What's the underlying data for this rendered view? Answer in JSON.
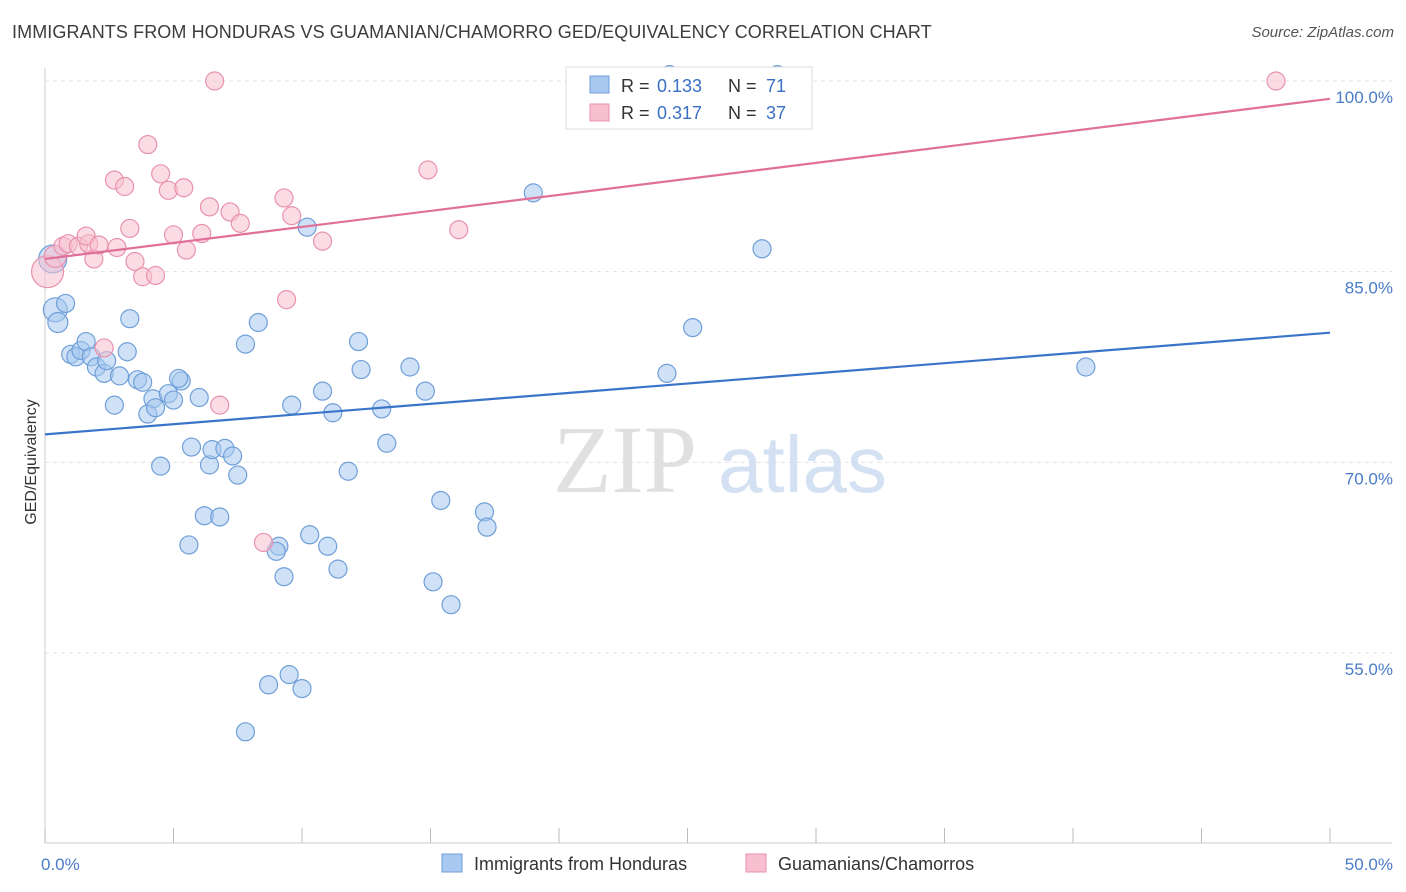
{
  "title": "IMMIGRANTS FROM HONDURAS VS GUAMANIAN/CHAMORRO GED/EQUIVALENCY CORRELATION CHART",
  "source": "Source: ZipAtlas.com",
  "watermark": {
    "zip": "ZIP",
    "atlas": "atlas"
  },
  "colors": {
    "blue_fill": "#a8c8f0",
    "blue_stroke": "#6f9fd8",
    "blue_line": "#3a74c9",
    "pink_fill": "#f7bfd0",
    "pink_stroke": "#e892ad",
    "pink_line": "#e0709a",
    "tick_text": "#4a7cc7",
    "grid": "#e2e2e2"
  },
  "legend": {
    "r_label": "R =",
    "n_label": "N =",
    "items": [
      {
        "r": "0.133",
        "n": "71",
        "color": "blue"
      },
      {
        "r": "0.317",
        "n": "37",
        "color": "pink"
      }
    ]
  },
  "chart_data": {
    "type": "scatter",
    "title": "IMMIGRANTS FROM HONDURAS VS GUAMANIAN/CHAMORRO GED/EQUIVALENCY CORRELATION CHART",
    "xlabel": "",
    "ylabel": "GED/Equivalency",
    "xlim": [
      0,
      50
    ],
    "ylim": [
      42,
      101
    ],
    "x_tick_labels": [
      {
        "value": 0,
        "label": "0.0%"
      },
      {
        "value": 50,
        "label": "50.0%"
      }
    ],
    "y_tick_labels": [
      {
        "value": 55,
        "label": "55.0%"
      },
      {
        "value": 70,
        "label": "70.0%"
      },
      {
        "value": 85,
        "label": "85.0%"
      },
      {
        "value": 100,
        "label": "100.0%"
      }
    ],
    "grid": true,
    "legend_position": "top-center",
    "series": [
      {
        "name": "Immigrants from Honduras",
        "color": "blue",
        "trend": {
          "x": [
            0,
            50
          ],
          "y": [
            72.2,
            80.2
          ]
        },
        "points": [
          [
            0.3,
            86.0,
            14
          ],
          [
            0.4,
            82.0,
            12
          ],
          [
            0.5,
            81.0,
            10
          ],
          [
            0.8,
            82.5,
            9
          ],
          [
            1.0,
            78.5,
            9
          ],
          [
            1.2,
            78.3,
            9
          ],
          [
            1.4,
            78.8,
            9
          ],
          [
            1.6,
            79.5,
            9
          ],
          [
            1.8,
            78.3,
            9
          ],
          [
            2.0,
            77.5,
            9
          ],
          [
            2.3,
            77.0,
            9
          ],
          [
            2.4,
            78.0,
            9
          ],
          [
            3.2,
            78.7,
            9
          ],
          [
            3.3,
            81.3,
            9
          ],
          [
            2.7,
            74.5,
            9
          ],
          [
            2.9,
            76.8,
            9
          ],
          [
            3.6,
            76.5,
            9
          ],
          [
            3.8,
            76.3,
            9
          ],
          [
            4.2,
            75.0,
            9
          ],
          [
            4.0,
            73.8,
            9
          ],
          [
            4.3,
            74.3,
            9
          ],
          [
            4.5,
            69.7,
            9
          ],
          [
            4.8,
            75.4,
            9
          ],
          [
            5.0,
            74.9,
            9
          ],
          [
            5.3,
            76.4,
            9
          ],
          [
            5.2,
            76.6,
            9
          ],
          [
            5.7,
            71.2,
            9
          ],
          [
            6.0,
            75.1,
            9
          ],
          [
            6.4,
            69.8,
            9
          ],
          [
            6.5,
            71.0,
            9
          ],
          [
            7.0,
            71.1,
            9
          ],
          [
            7.3,
            70.5,
            9
          ],
          [
            7.5,
            69.0,
            9
          ],
          [
            7.8,
            79.3,
            9
          ],
          [
            8.3,
            81.0,
            9
          ],
          [
            9.1,
            63.4,
            9
          ],
          [
            9.0,
            63.0,
            9
          ],
          [
            9.3,
            61.0,
            9
          ],
          [
            8.7,
            52.5,
            9
          ],
          [
            9.5,
            53.3,
            9
          ],
          [
            10.0,
            52.2,
            9
          ],
          [
            7.8,
            48.8,
            9
          ],
          [
            6.2,
            65.8,
            9
          ],
          [
            6.8,
            65.7,
            9
          ],
          [
            5.6,
            63.5,
            9
          ],
          [
            9.6,
            74.5,
            9
          ],
          [
            10.3,
            64.3,
            9
          ],
          [
            10.8,
            75.6,
            9
          ],
          [
            11.2,
            73.9,
            9
          ],
          [
            11.0,
            63.4,
            9
          ],
          [
            11.4,
            61.6,
            9
          ],
          [
            11.8,
            69.3,
            9
          ],
          [
            12.2,
            79.5,
            9
          ],
          [
            12.3,
            77.3,
            9
          ],
          [
            13.1,
            74.2,
            9
          ],
          [
            13.3,
            71.5,
            9
          ],
          [
            14.2,
            77.5,
            9
          ],
          [
            14.8,
            75.6,
            9
          ],
          [
            15.1,
            60.6,
            9
          ],
          [
            15.4,
            67.0,
            9
          ],
          [
            15.8,
            58.8,
            9
          ],
          [
            17.1,
            66.1,
            9
          ],
          [
            17.2,
            64.9,
            9
          ],
          [
            10.2,
            88.5,
            9
          ],
          [
            19.0,
            91.2,
            9
          ],
          [
            24.2,
            77.0,
            9
          ],
          [
            25.2,
            80.6,
            9
          ],
          [
            27.9,
            86.8,
            9
          ],
          [
            40.5,
            77.5,
            9
          ],
          [
            24.3,
            100.5,
            9
          ],
          [
            28.5,
            100.5,
            9
          ]
        ]
      },
      {
        "name": "Guamanians/Chamorros",
        "color": "pink",
        "trend": {
          "x": [
            0,
            50
          ],
          "y": [
            86.0,
            98.6
          ]
        },
        "points": [
          [
            0.1,
            85.0,
            16
          ],
          [
            0.4,
            86.2,
            11
          ],
          [
            0.7,
            87.0,
            9
          ],
          [
            0.9,
            87.2,
            9
          ],
          [
            1.3,
            87.0,
            9
          ],
          [
            1.7,
            87.2,
            9
          ],
          [
            1.6,
            87.8,
            9
          ],
          [
            1.9,
            86.0,
            9
          ],
          [
            2.1,
            87.1,
            9
          ],
          [
            2.3,
            79.0,
            9
          ],
          [
            2.7,
            92.2,
            9
          ],
          [
            3.1,
            91.7,
            9
          ],
          [
            2.8,
            86.9,
            9
          ],
          [
            3.3,
            88.4,
            9
          ],
          [
            3.5,
            85.8,
            9
          ],
          [
            3.8,
            84.6,
            9
          ],
          [
            4.0,
            95.0,
            9
          ],
          [
            4.3,
            84.7,
            9
          ],
          [
            4.5,
            92.7,
            9
          ],
          [
            4.8,
            91.4,
            9
          ],
          [
            5.0,
            87.9,
            9
          ],
          [
            5.4,
            91.6,
            9
          ],
          [
            5.5,
            86.7,
            9
          ],
          [
            6.1,
            88.0,
            9
          ],
          [
            6.4,
            90.1,
            9
          ],
          [
            6.6,
            100.0,
            9
          ],
          [
            6.8,
            74.5,
            9
          ],
          [
            7.2,
            89.7,
            9
          ],
          [
            7.6,
            88.8,
            9
          ],
          [
            8.5,
            63.7,
            9
          ],
          [
            9.3,
            90.8,
            9
          ],
          [
            9.4,
            82.8,
            9
          ],
          [
            9.6,
            89.4,
            9
          ],
          [
            10.8,
            87.4,
            9
          ],
          [
            14.9,
            93.0,
            9
          ],
          [
            16.1,
            88.3,
            9
          ],
          [
            47.9,
            100.0,
            9
          ]
        ]
      }
    ],
    "bottom_legend": [
      "Immigrants from Honduras",
      "Guamanians/Chamorros"
    ]
  }
}
